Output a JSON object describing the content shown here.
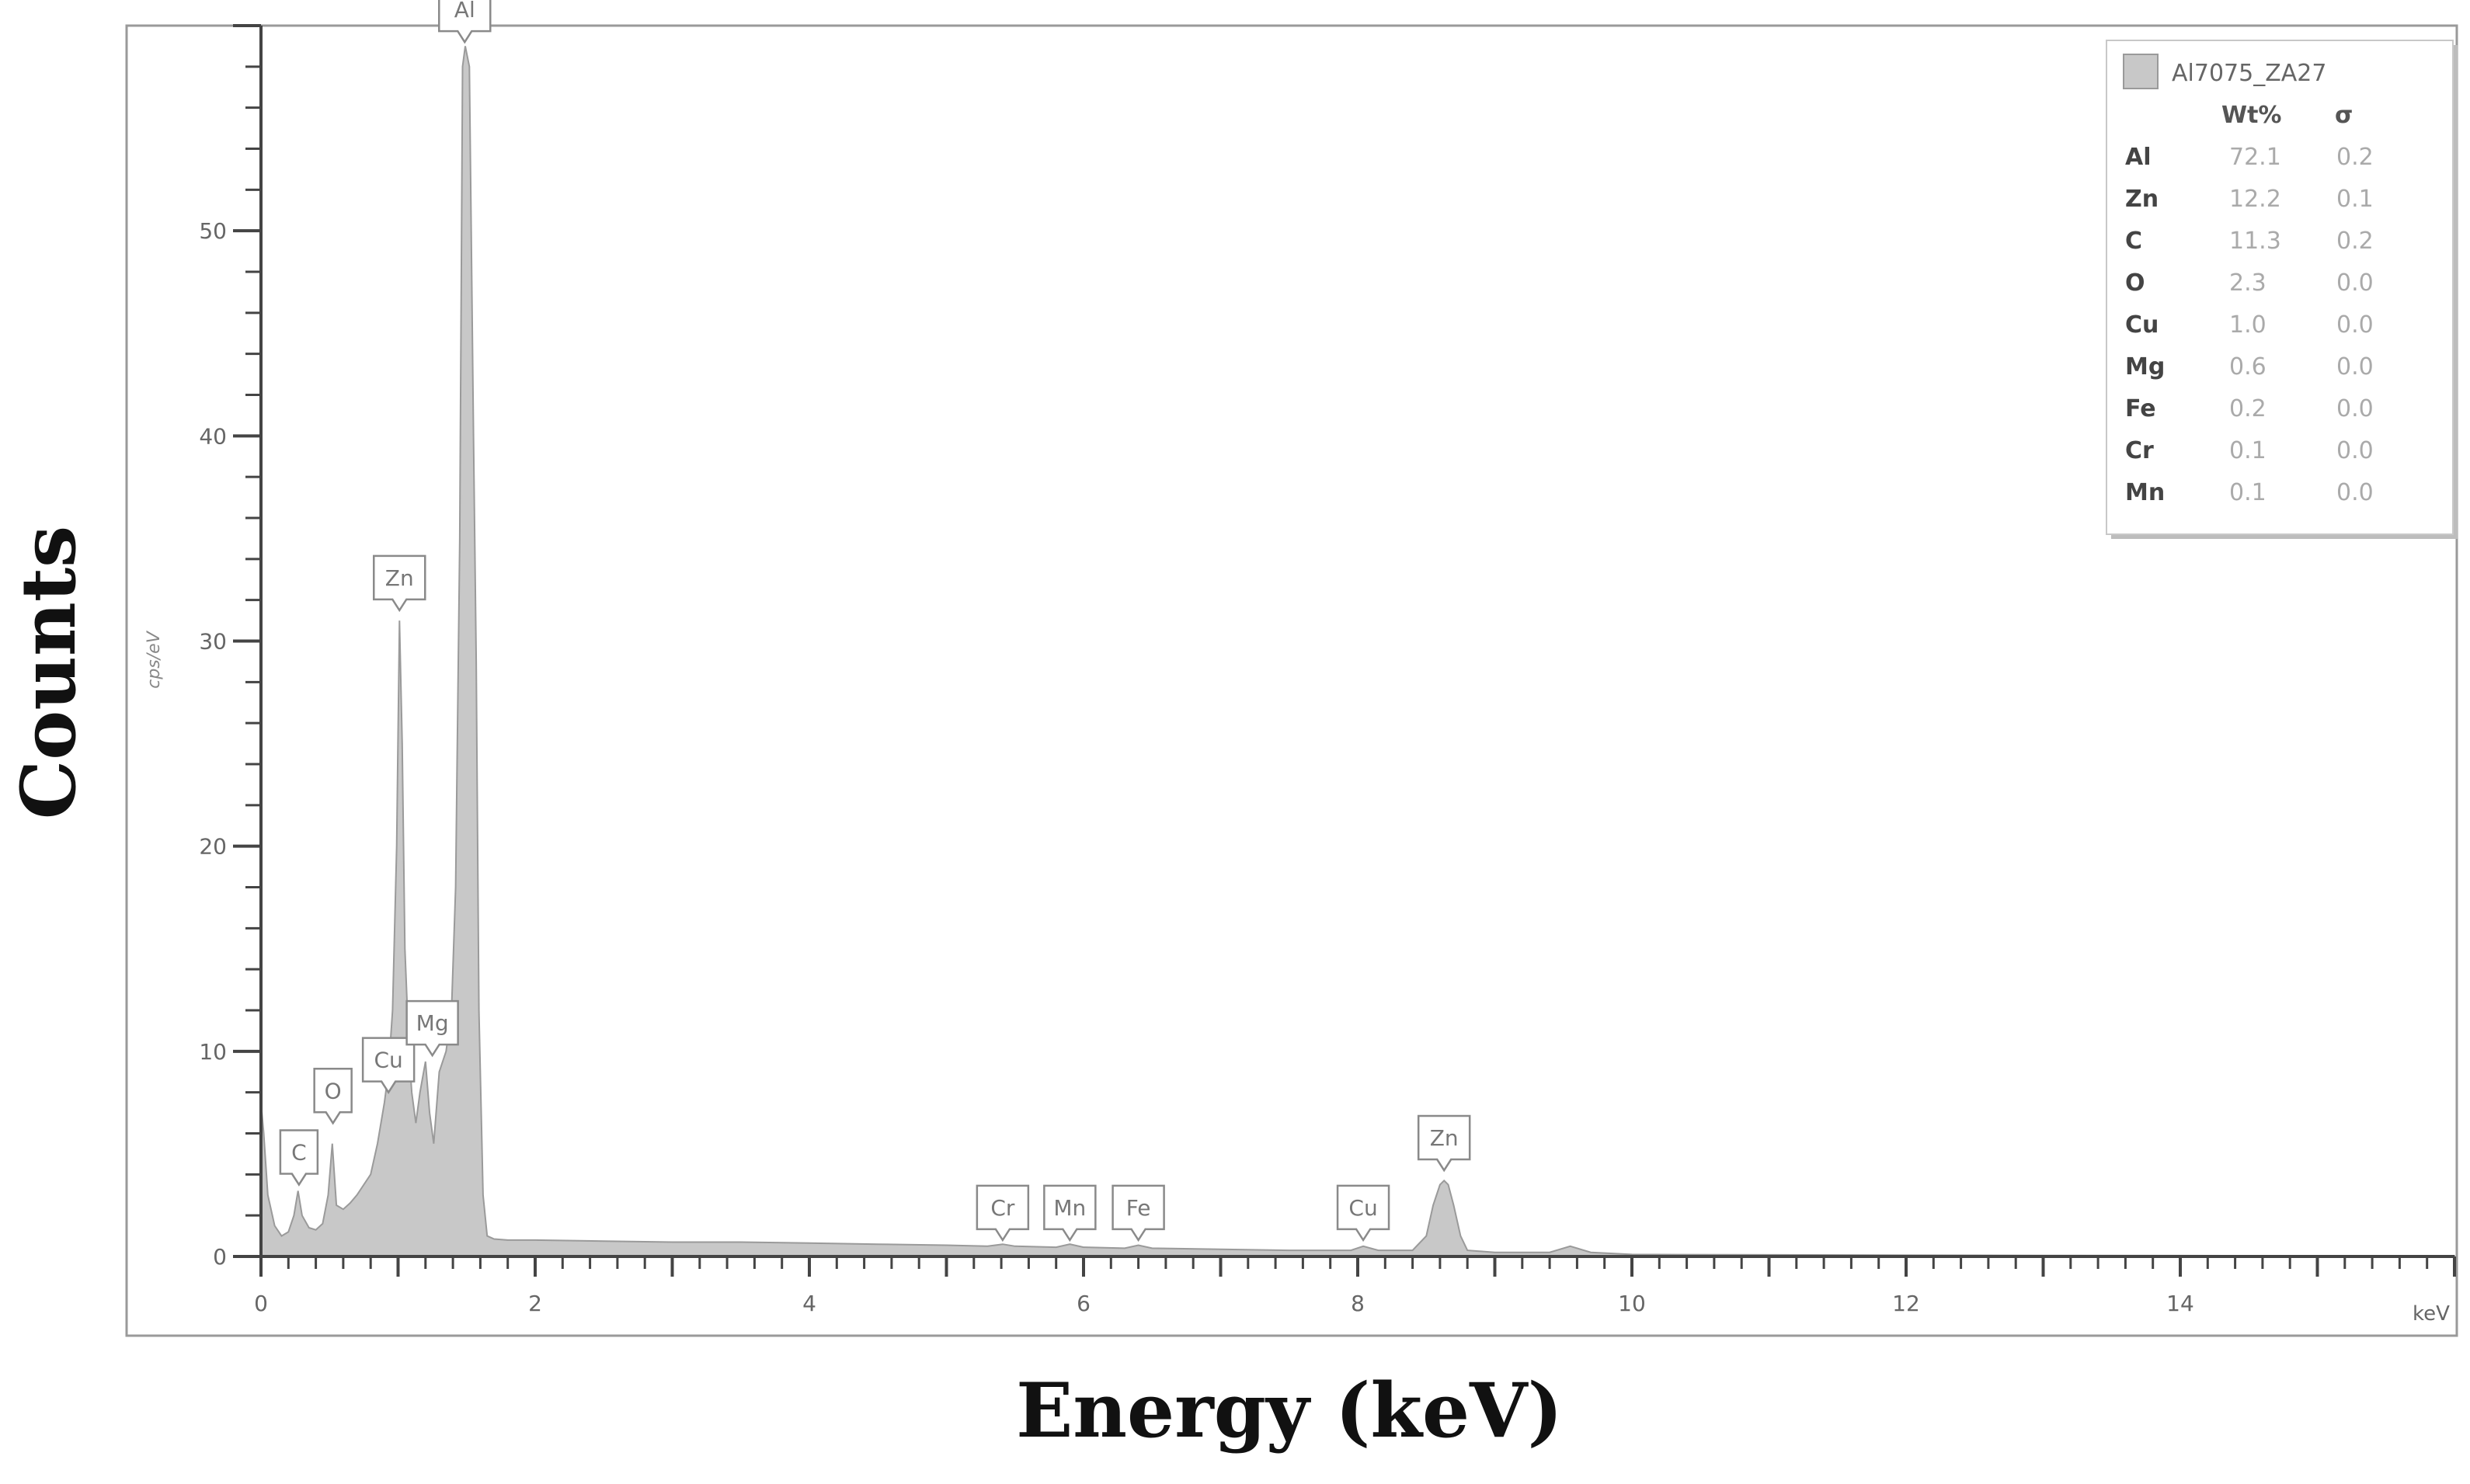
{
  "chart_data": {
    "type": "area",
    "title": "",
    "xlabel": "Energy (keV)",
    "ylabel": "Counts",
    "inner_ylabel": "cps/eV",
    "x_unit": "keV",
    "xlim": [
      0,
      16
    ],
    "ylim": [
      0,
      60
    ],
    "x_ticks": [
      "0",
      "2",
      "4",
      "6",
      "8",
      "10",
      "12",
      "14"
    ],
    "y_ticks": [
      "0",
      "10",
      "20",
      "30",
      "40",
      "50"
    ],
    "grid": false,
    "fill_color": "#c8c8c8",
    "line_color": "#9a9a9a",
    "series": [
      {
        "name": "Al7075_ZA27",
        "x": [
          0.0,
          0.02,
          0.05,
          0.1,
          0.15,
          0.2,
          0.24,
          0.27,
          0.3,
          0.35,
          0.4,
          0.45,
          0.49,
          0.52,
          0.55,
          0.6,
          0.65,
          0.7,
          0.75,
          0.8,
          0.85,
          0.9,
          0.93,
          0.96,
          0.99,
          1.01,
          1.03,
          1.05,
          1.08,
          1.1,
          1.13,
          1.16,
          1.2,
          1.23,
          1.26,
          1.3,
          1.35,
          1.39,
          1.42,
          1.45,
          1.47,
          1.49,
          1.52,
          1.55,
          1.57,
          1.59,
          1.62,
          1.65,
          1.7,
          1.8,
          2.0,
          2.5,
          3.0,
          3.5,
          4.0,
          4.5,
          5.0,
          5.3,
          5.41,
          5.5,
          5.8,
          5.9,
          6.0,
          6.3,
          6.4,
          6.5,
          7.0,
          7.5,
          7.95,
          8.04,
          8.15,
          8.4,
          8.5,
          8.55,
          8.6,
          8.63,
          8.66,
          8.7,
          8.75,
          8.8,
          9.0,
          9.4,
          9.55,
          9.7,
          10.0,
          11.0,
          12.0,
          13.0,
          14.0,
          15.0,
          16.0
        ],
        "y": [
          7.5,
          6.0,
          3.0,
          1.5,
          1.0,
          1.2,
          2.0,
          3.2,
          2.0,
          1.4,
          1.3,
          1.6,
          3.0,
          5.5,
          2.5,
          2.3,
          2.6,
          3.0,
          3.5,
          4.0,
          5.5,
          7.5,
          9.0,
          12.0,
          20.0,
          31.0,
          25.0,
          15.0,
          10.0,
          8.0,
          6.5,
          8.0,
          9.5,
          7.0,
          5.5,
          9.0,
          10.0,
          12.0,
          18.0,
          35.0,
          58.0,
          59.0,
          58.0,
          40.0,
          29.0,
          12.0,
          3.0,
          1.0,
          0.85,
          0.8,
          0.8,
          0.75,
          0.7,
          0.7,
          0.65,
          0.6,
          0.55,
          0.5,
          0.6,
          0.5,
          0.45,
          0.6,
          0.45,
          0.4,
          0.55,
          0.4,
          0.35,
          0.3,
          0.3,
          0.5,
          0.3,
          0.3,
          1.0,
          2.5,
          3.5,
          3.7,
          3.5,
          2.5,
          1.0,
          0.3,
          0.2,
          0.2,
          0.5,
          0.2,
          0.1,
          0.08,
          0.06,
          0.05,
          0.04,
          0.03,
          0.03
        ]
      }
    ],
    "peak_labels": [
      {
        "label": "C",
        "x": 0.277,
        "y": 3.5
      },
      {
        "label": "O",
        "x": 0.525,
        "y": 6.5
      },
      {
        "label": "Cu",
        "x": 0.93,
        "y": 8.0
      },
      {
        "label": "Mg",
        "x": 1.25,
        "y": 9.8
      },
      {
        "label": "Zn",
        "x": 1.01,
        "y": 31.5
      },
      {
        "label": "Al",
        "x": 1.486,
        "y": 59.2
      },
      {
        "label": "Cr",
        "x": 5.41,
        "y": 0.8
      },
      {
        "label": "Mn",
        "x": 5.9,
        "y": 0.8
      },
      {
        "label": "Fe",
        "x": 6.4,
        "y": 0.8
      },
      {
        "label": "Cu",
        "x": 8.04,
        "y": 0.8
      },
      {
        "label": "Zn",
        "x": 8.63,
        "y": 4.2
      }
    ],
    "legend": {
      "placement": "top-right",
      "title": "Al7075_ZA27",
      "headers": [
        "Wt%",
        "σ"
      ],
      "rows": [
        {
          "element": "Al",
          "wt": "72.1",
          "sigma": "0.2"
        },
        {
          "element": "Zn",
          "wt": "12.2",
          "sigma": "0.1"
        },
        {
          "element": "C",
          "wt": "11.3",
          "sigma": "0.2"
        },
        {
          "element": "O",
          "wt": "2.3",
          "sigma": "0.0"
        },
        {
          "element": "Cu",
          "wt": "1.0",
          "sigma": "0.0"
        },
        {
          "element": "Mg",
          "wt": "0.6",
          "sigma": "0.0"
        },
        {
          "element": "Fe",
          "wt": "0.2",
          "sigma": "0.0"
        },
        {
          "element": "Cr",
          "wt": "0.1",
          "sigma": "0.0"
        },
        {
          "element": "Mn",
          "wt": "0.1",
          "sigma": "0.0"
        }
      ]
    }
  }
}
